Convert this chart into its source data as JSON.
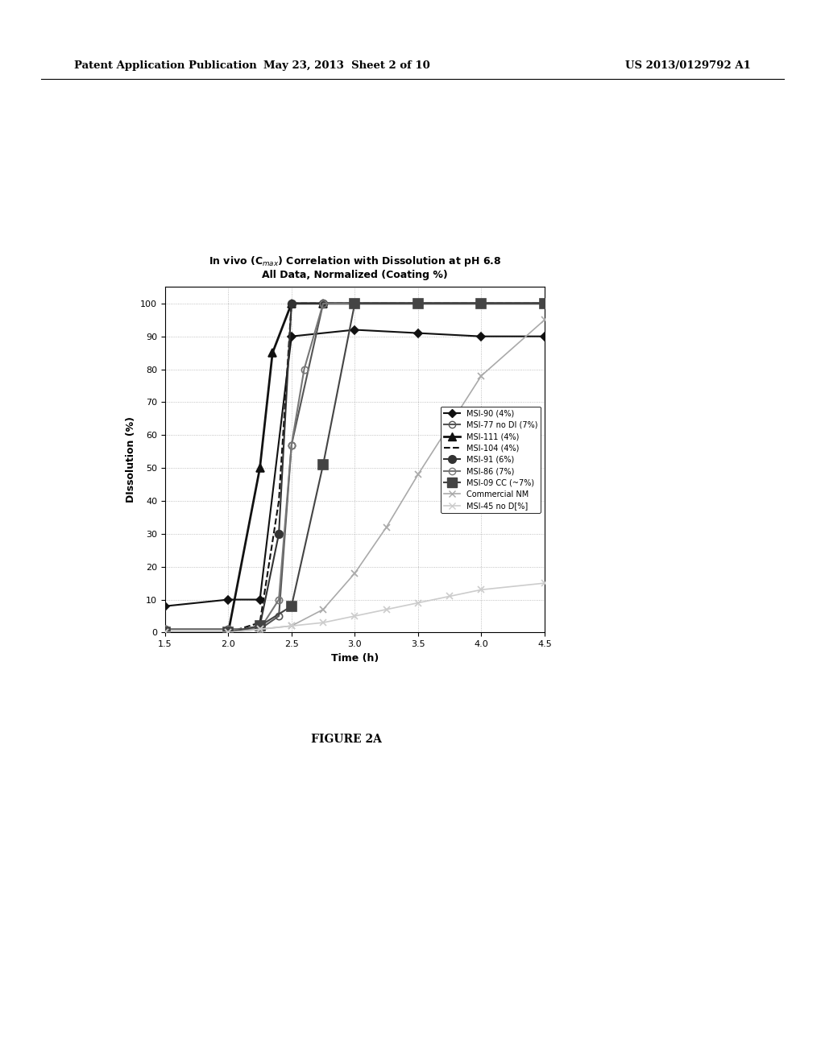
{
  "title_line1": "In vivo (C$_{max}$) Correlation with Dissolution at pH 6.8",
  "title_line2": "All Data, Normalized (Coating %)",
  "xlabel": "Time (h)",
  "ylabel": "DIssolution (%)",
  "xlim": [
    1.5,
    4.5
  ],
  "ylim": [
    0,
    105
  ],
  "xticks": [
    1.5,
    2.0,
    2.5,
    3.0,
    3.5,
    4.0,
    4.5
  ],
  "yticks": [
    0,
    10,
    20,
    30,
    40,
    50,
    60,
    70,
    80,
    90,
    100
  ],
  "series": [
    {
      "label": "MSI-90 (4%)",
      "color": "#111111",
      "marker": "D",
      "markersize": 5,
      "fillstyle": "full",
      "linestyle": "-",
      "linewidth": 1.5,
      "x": [
        1.5,
        2.0,
        2.25,
        2.5,
        3.0,
        3.5,
        4.0,
        4.5
      ],
      "y": [
        8,
        10,
        10,
        90,
        92,
        91,
        90,
        90
      ]
    },
    {
      "label": "MSI-77 no DI (7%)",
      "color": "#555555",
      "marker": "o",
      "markersize": 6,
      "fillstyle": "none",
      "linestyle": "-",
      "linewidth": 1.5,
      "x": [
        1.5,
        2.0,
        2.25,
        2.4,
        2.5,
        2.75,
        3.0,
        3.5,
        4.0,
        4.5
      ],
      "y": [
        1,
        1,
        1,
        5,
        57,
        100,
        100,
        100,
        100,
        100
      ]
    },
    {
      "label": "MSI-111 (4%)",
      "color": "#111111",
      "marker": "^",
      "markersize": 7,
      "fillstyle": "full",
      "linestyle": "-",
      "linewidth": 2.0,
      "x": [
        1.5,
        2.0,
        2.25,
        2.35,
        2.5,
        2.75,
        3.0,
        3.5,
        4.0,
        4.5
      ],
      "y": [
        0,
        0,
        50,
        85,
        100,
        100,
        100,
        100,
        100,
        100
      ]
    },
    {
      "label": "MSI-104 (4%)",
      "color": "#111111",
      "marker": "none",
      "markersize": 5,
      "fillstyle": "none",
      "linestyle": "--",
      "linewidth": 1.5,
      "x": [
        1.5,
        2.0,
        2.25,
        2.4,
        2.5,
        2.75,
        3.0,
        3.5,
        4.0,
        4.5
      ],
      "y": [
        0,
        0,
        3,
        40,
        100,
        100,
        100,
        100,
        100,
        100
      ]
    },
    {
      "label": "MSI-91 (6%)",
      "color": "#333333",
      "marker": "o",
      "markersize": 7,
      "fillstyle": "full",
      "linestyle": "-",
      "linewidth": 1.5,
      "x": [
        1.5,
        2.0,
        2.25,
        2.4,
        2.5,
        2.75,
        3.0,
        3.5,
        4.0,
        4.5
      ],
      "y": [
        0,
        0,
        2,
        30,
        100,
        100,
        100,
        100,
        100,
        100
      ]
    },
    {
      "label": "MSI-86 (7%)",
      "color": "#777777",
      "marker": "o",
      "markersize": 6,
      "fillstyle": "none",
      "linestyle": "-",
      "linewidth": 1.5,
      "x": [
        1.5,
        2.0,
        2.25,
        2.4,
        2.5,
        2.6,
        2.75,
        3.0,
        3.5,
        4.0,
        4.5
      ],
      "y": [
        1,
        1,
        1,
        10,
        57,
        80,
        100,
        100,
        100,
        100,
        100
      ]
    },
    {
      "label": "MSI-09 CC (~7%)",
      "color": "#444444",
      "marker": "s",
      "markersize": 8,
      "fillstyle": "full",
      "linestyle": "-",
      "linewidth": 1.5,
      "x": [
        1.5,
        2.0,
        2.25,
        2.5,
        2.75,
        3.0,
        3.5,
        4.0,
        4.5
      ],
      "y": [
        0,
        0,
        2,
        8,
        51,
        100,
        100,
        100,
        100
      ]
    },
    {
      "label": "Commercial NM",
      "color": "#aaaaaa",
      "marker": "x",
      "markersize": 6,
      "fillstyle": "full",
      "linestyle": "-",
      "linewidth": 1.2,
      "x": [
        1.5,
        2.0,
        2.25,
        2.5,
        2.75,
        3.0,
        3.25,
        3.5,
        3.75,
        4.0,
        4.5
      ],
      "y": [
        0,
        0,
        1,
        2,
        7,
        18,
        32,
        48,
        63,
        78,
        95
      ]
    },
    {
      "label": "MSI-45 no D[%]",
      "color": "#cccccc",
      "marker": "x",
      "markersize": 6,
      "fillstyle": "full",
      "linestyle": "-",
      "linewidth": 1.2,
      "x": [
        1.5,
        2.0,
        2.25,
        2.5,
        2.75,
        3.0,
        3.25,
        3.5,
        3.75,
        4.0,
        4.5
      ],
      "y": [
        0,
        0,
        1,
        2,
        3,
        5,
        7,
        9,
        11,
        13,
        15
      ]
    }
  ],
  "figure_label": "FIGURE 2A",
  "header_left": "Patent Application Publication",
  "header_center": "May 23, 2013  Sheet 2 of 10",
  "header_right": "US 2013/0129792 A1",
  "background_color": "#ffffff"
}
